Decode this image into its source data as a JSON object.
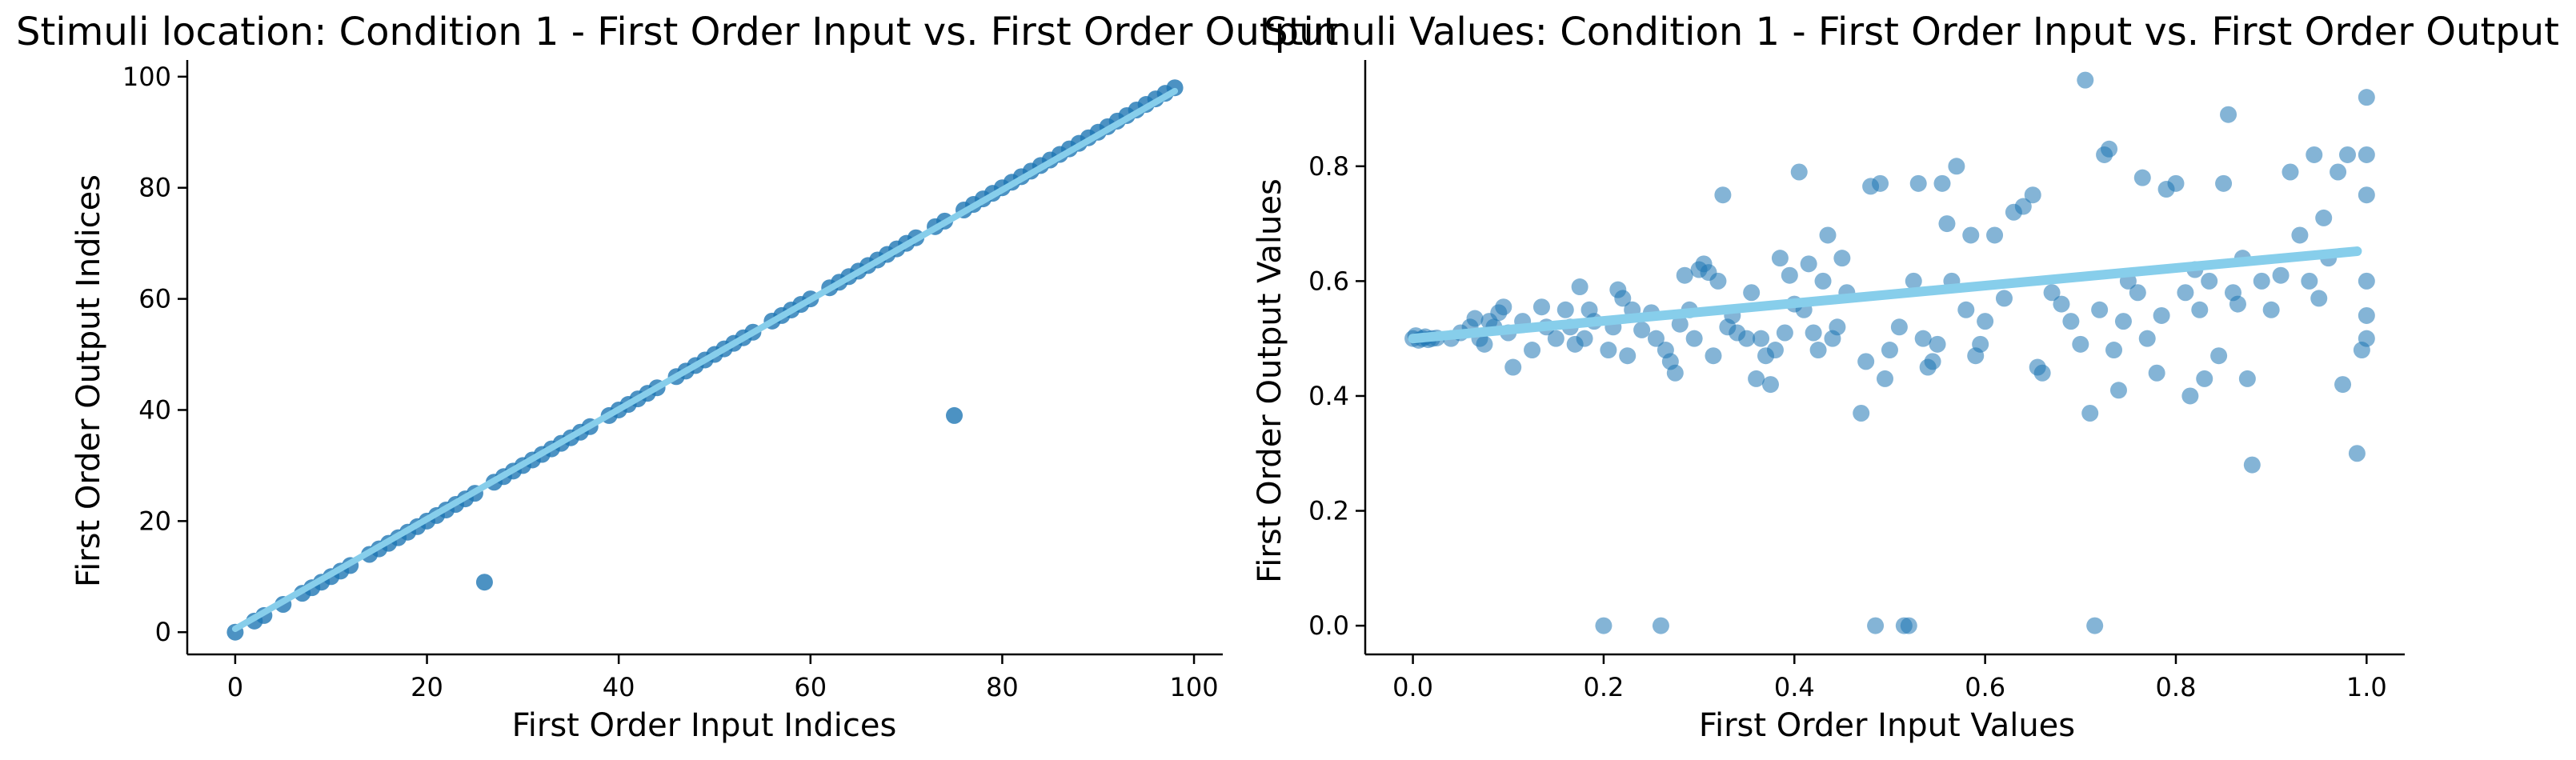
{
  "colors": {
    "points": "#1f77b4",
    "fit_line": "#87ceeb"
  },
  "chart_data": [
    {
      "type": "scatter",
      "title": "Stimuli location: Condition 1 - First Order Input vs. First Order Output",
      "xlabel": "First Order Input Indices",
      "ylabel": "First Order Output Indices",
      "xlim": [
        -5,
        103
      ],
      "ylim": [
        -4,
        103
      ],
      "xticks": [
        "0",
        "20",
        "40",
        "60",
        "80",
        "100"
      ],
      "yticks": [
        "0",
        "20",
        "40",
        "60",
        "80",
        "100"
      ],
      "grid": false,
      "point_alpha": 0.8,
      "series": [
        {
          "points": [
            [
              0,
              0
            ],
            [
              2,
              2
            ],
            [
              3,
              3
            ],
            [
              5,
              5
            ],
            [
              7,
              7
            ],
            [
              8,
              8
            ],
            [
              9,
              9
            ],
            [
              10,
              10
            ],
            [
              11,
              11
            ],
            [
              12,
              12
            ],
            [
              14,
              14
            ],
            [
              15,
              15
            ],
            [
              16,
              16
            ],
            [
              17,
              17
            ],
            [
              18,
              18
            ],
            [
              19,
              19
            ],
            [
              20,
              20
            ],
            [
              21,
              21
            ],
            [
              22,
              22
            ],
            [
              23,
              23
            ],
            [
              24,
              24
            ],
            [
              25,
              25
            ],
            [
              26,
              9
            ],
            [
              27,
              27
            ],
            [
              28,
              28
            ],
            [
              29,
              29
            ],
            [
              30,
              30
            ],
            [
              31,
              31
            ],
            [
              32,
              32
            ],
            [
              33,
              33
            ],
            [
              34,
              34
            ],
            [
              35,
              35
            ],
            [
              36,
              36
            ],
            [
              37,
              37
            ],
            [
              39,
              39
            ],
            [
              40,
              40
            ],
            [
              41,
              41
            ],
            [
              42,
              42
            ],
            [
              43,
              43
            ],
            [
              44,
              44
            ],
            [
              46,
              46
            ],
            [
              47,
              47
            ],
            [
              48,
              48
            ],
            [
              49,
              49
            ],
            [
              50,
              50
            ],
            [
              51,
              51
            ],
            [
              52,
              52
            ],
            [
              53,
              53
            ],
            [
              54,
              54
            ],
            [
              56,
              56
            ],
            [
              57,
              57
            ],
            [
              58,
              58
            ],
            [
              59,
              59
            ],
            [
              60,
              60
            ],
            [
              62,
              62
            ],
            [
              63,
              63
            ],
            [
              64,
              64
            ],
            [
              65,
              65
            ],
            [
              66,
              66
            ],
            [
              67,
              67
            ],
            [
              68,
              68
            ],
            [
              69,
              69
            ],
            [
              70,
              70
            ],
            [
              71,
              71
            ],
            [
              73,
              73
            ],
            [
              74,
              74
            ],
            [
              75,
              39
            ],
            [
              76,
              76
            ],
            [
              77,
              77
            ],
            [
              78,
              78
            ],
            [
              79,
              79
            ],
            [
              80,
              80
            ],
            [
              81,
              81
            ],
            [
              82,
              82
            ],
            [
              83,
              83
            ],
            [
              84,
              84
            ],
            [
              85,
              85
            ],
            [
              86,
              86
            ],
            [
              87,
              87
            ],
            [
              88,
              88
            ],
            [
              89,
              89
            ],
            [
              90,
              90
            ],
            [
              91,
              91
            ],
            [
              92,
              92
            ],
            [
              93,
              93
            ],
            [
              94,
              94
            ],
            [
              95,
              95
            ],
            [
              96,
              96
            ],
            [
              97,
              97
            ],
            [
              98,
              98
            ]
          ]
        }
      ],
      "fit_line": {
        "x": [
          0,
          98
        ],
        "y": [
          0.6,
          97.4
        ]
      }
    },
    {
      "type": "scatter",
      "title": "Stimuli Values: Condition 1 - First Order Input vs. First Order Output",
      "xlabel": "First Order Input Values",
      "ylabel": "First Order Output Values",
      "xlim": [
        -0.05,
        1.04
      ],
      "ylim": [
        -0.05,
        0.985
      ],
      "xticks": [
        "0.0",
        "0.2",
        "0.4",
        "0.6",
        "0.8",
        "1.0"
      ],
      "yticks": [
        "0.0",
        "0.2",
        "0.4",
        "0.6",
        "0.8"
      ],
      "grid": false,
      "point_alpha": 0.55,
      "series": [
        {
          "points": [
            [
              0.0,
              0.5
            ],
            [
              0.003,
              0.505
            ],
            [
              0.006,
              0.497
            ],
            [
              0.01,
              0.5
            ],
            [
              0.013,
              0.503
            ],
            [
              0.016,
              0.498
            ],
            [
              0.02,
              0.5
            ],
            [
              0.025,
              0.501
            ],
            [
              0.04,
              0.5
            ],
            [
              0.05,
              0.51
            ],
            [
              0.06,
              0.52
            ],
            [
              0.065,
              0.535
            ],
            [
              0.07,
              0.5
            ],
            [
              0.075,
              0.49
            ],
            [
              0.08,
              0.53
            ],
            [
              0.085,
              0.52
            ],
            [
              0.09,
              0.545
            ],
            [
              0.095,
              0.555
            ],
            [
              0.1,
              0.51
            ],
            [
              0.105,
              0.45
            ],
            [
              0.115,
              0.53
            ],
            [
              0.125,
              0.48
            ],
            [
              0.135,
              0.555
            ],
            [
              0.14,
              0.52
            ],
            [
              0.15,
              0.5
            ],
            [
              0.16,
              0.55
            ],
            [
              0.165,
              0.52
            ],
            [
              0.17,
              0.49
            ],
            [
              0.175,
              0.59
            ],
            [
              0.18,
              0.5
            ],
            [
              0.185,
              0.55
            ],
            [
              0.19,
              0.53
            ],
            [
              0.2,
              0.0
            ],
            [
              0.205,
              0.48
            ],
            [
              0.21,
              0.52
            ],
            [
              0.215,
              0.585
            ],
            [
              0.22,
              0.57
            ],
            [
              0.225,
              0.47
            ],
            [
              0.23,
              0.55
            ],
            [
              0.24,
              0.515
            ],
            [
              0.25,
              0.545
            ],
            [
              0.255,
              0.5
            ],
            [
              0.26,
              0.0
            ],
            [
              0.265,
              0.48
            ],
            [
              0.27,
              0.46
            ],
            [
              0.275,
              0.44
            ],
            [
              0.28,
              0.525
            ],
            [
              0.285,
              0.61
            ],
            [
              0.29,
              0.55
            ],
            [
              0.295,
              0.5
            ],
            [
              0.3,
              0.62
            ],
            [
              0.305,
              0.63
            ],
            [
              0.31,
              0.615
            ],
            [
              0.315,
              0.47
            ],
            [
              0.32,
              0.6
            ],
            [
              0.325,
              0.75
            ],
            [
              0.33,
              0.52
            ],
            [
              0.335,
              0.54
            ],
            [
              0.34,
              0.51
            ],
            [
              0.35,
              0.5
            ],
            [
              0.355,
              0.58
            ],
            [
              0.36,
              0.43
            ],
            [
              0.365,
              0.5
            ],
            [
              0.37,
              0.47
            ],
            [
              0.375,
              0.42
            ],
            [
              0.38,
              0.48
            ],
            [
              0.385,
              0.64
            ],
            [
              0.39,
              0.51
            ],
            [
              0.395,
              0.61
            ],
            [
              0.4,
              0.56
            ],
            [
              0.405,
              0.79
            ],
            [
              0.41,
              0.55
            ],
            [
              0.415,
              0.63
            ],
            [
              0.42,
              0.51
            ],
            [
              0.425,
              0.48
            ],
            [
              0.43,
              0.6
            ],
            [
              0.435,
              0.68
            ],
            [
              0.44,
              0.5
            ],
            [
              0.445,
              0.52
            ],
            [
              0.45,
              0.64
            ],
            [
              0.455,
              0.58
            ],
            [
              0.47,
              0.37
            ],
            [
              0.475,
              0.46
            ],
            [
              0.48,
              0.765
            ],
            [
              0.485,
              0.0
            ],
            [
              0.49,
              0.77
            ],
            [
              0.495,
              0.43
            ],
            [
              0.5,
              0.48
            ],
            [
              0.51,
              0.52
            ],
            [
              0.515,
              0.0
            ],
            [
              0.52,
              0.0
            ],
            [
              0.525,
              0.6
            ],
            [
              0.53,
              0.77
            ],
            [
              0.535,
              0.5
            ],
            [
              0.54,
              0.45
            ],
            [
              0.545,
              0.46
            ],
            [
              0.55,
              0.49
            ],
            [
              0.555,
              0.77
            ],
            [
              0.56,
              0.7
            ],
            [
              0.565,
              0.6
            ],
            [
              0.57,
              0.8
            ],
            [
              0.58,
              0.55
            ],
            [
              0.585,
              0.68
            ],
            [
              0.59,
              0.47
            ],
            [
              0.595,
              0.49
            ],
            [
              0.6,
              0.53
            ],
            [
              0.61,
              0.68
            ],
            [
              0.62,
              0.57
            ],
            [
              0.63,
              0.72
            ],
            [
              0.64,
              0.73
            ],
            [
              0.65,
              0.75
            ],
            [
              0.655,
              0.45
            ],
            [
              0.66,
              0.44
            ],
            [
              0.67,
              0.58
            ],
            [
              0.68,
              0.56
            ],
            [
              0.69,
              0.53
            ],
            [
              0.7,
              0.49
            ],
            [
              0.705,
              0.95
            ],
            [
              0.71,
              0.37
            ],
            [
              0.715,
              0.0
            ],
            [
              0.72,
              0.55
            ],
            [
              0.725,
              0.82
            ],
            [
              0.73,
              0.83
            ],
            [
              0.735,
              0.48
            ],
            [
              0.74,
              0.41
            ],
            [
              0.745,
              0.53
            ],
            [
              0.75,
              0.6
            ],
            [
              0.76,
              0.58
            ],
            [
              0.765,
              0.78
            ],
            [
              0.77,
              0.5
            ],
            [
              0.78,
              0.44
            ],
            [
              0.785,
              0.54
            ],
            [
              0.79,
              0.76
            ],
            [
              0.8,
              0.77
            ],
            [
              0.81,
              0.58
            ],
            [
              0.815,
              0.4
            ],
            [
              0.82,
              0.62
            ],
            [
              0.825,
              0.55
            ],
            [
              0.83,
              0.43
            ],
            [
              0.835,
              0.6
            ],
            [
              0.845,
              0.47
            ],
            [
              0.85,
              0.77
            ],
            [
              0.855,
              0.89
            ],
            [
              0.86,
              0.58
            ],
            [
              0.865,
              0.56
            ],
            [
              0.87,
              0.64
            ],
            [
              0.875,
              0.43
            ],
            [
              0.88,
              0.28
            ],
            [
              0.89,
              0.6
            ],
            [
              0.9,
              0.55
            ],
            [
              0.91,
              0.61
            ],
            [
              0.92,
              0.79
            ],
            [
              0.93,
              0.68
            ],
            [
              0.94,
              0.6
            ],
            [
              0.945,
              0.82
            ],
            [
              0.95,
              0.57
            ],
            [
              0.955,
              0.71
            ],
            [
              0.96,
              0.64
            ],
            [
              0.97,
              0.79
            ],
            [
              0.975,
              0.42
            ],
            [
              0.98,
              0.82
            ],
            [
              0.99,
              0.3
            ],
            [
              0.995,
              0.48
            ],
            [
              1.0,
              0.92
            ],
            [
              1.0,
              0.6
            ],
            [
              1.0,
              0.82
            ],
            [
              1.0,
              0.5
            ],
            [
              1.0,
              0.75
            ],
            [
              1.0,
              0.54
            ]
          ]
        }
      ],
      "fit_line": {
        "x": [
          0.0,
          0.99
        ],
        "y": [
          0.5,
          0.652
        ]
      }
    }
  ]
}
